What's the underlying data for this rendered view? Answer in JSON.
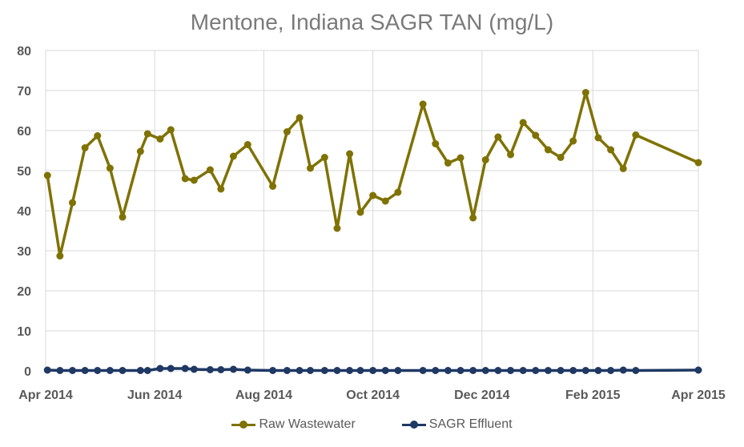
{
  "chart_data": {
    "type": "line",
    "title": "Mentone, Indiana SAGR TAN (mg/L)",
    "ylim": [
      0,
      80
    ],
    "yticks": [
      0,
      10,
      20,
      30,
      40,
      50,
      60,
      70,
      80
    ],
    "xlim": [
      "2014-04-01",
      "2015-04-01"
    ],
    "xticks": [
      {
        "date": "2014-04-01",
        "label": "Apr 2014"
      },
      {
        "date": "2014-06-01",
        "label": "Jun 2014"
      },
      {
        "date": "2014-08-01",
        "label": "Aug 2014"
      },
      {
        "date": "2014-10-01",
        "label": "Oct 2014"
      },
      {
        "date": "2014-12-01",
        "label": "Dec 2014"
      },
      {
        "date": "2015-02-01",
        "label": "Feb 2015"
      },
      {
        "date": "2015-04-01",
        "label": "Apr 2015"
      }
    ],
    "grid": true,
    "legend_position": "bottom",
    "series": [
      {
        "name": "Raw Wastewater",
        "color": "#7f7203",
        "points": [
          [
            "2014-04-02",
            48.8
          ],
          [
            "2014-04-09",
            28.7
          ],
          [
            "2014-04-16",
            42.0
          ],
          [
            "2014-04-23",
            55.7
          ],
          [
            "2014-04-30",
            58.7
          ],
          [
            "2014-05-07",
            50.6
          ],
          [
            "2014-05-14",
            38.4
          ],
          [
            "2014-05-24",
            54.8
          ],
          [
            "2014-05-28",
            59.2
          ],
          [
            "2014-06-04",
            57.9
          ],
          [
            "2014-06-10",
            60.2
          ],
          [
            "2014-06-18",
            48.0
          ],
          [
            "2014-06-23",
            47.6
          ],
          [
            "2014-07-02",
            50.2
          ],
          [
            "2014-07-08",
            45.4
          ],
          [
            "2014-07-15",
            53.6
          ],
          [
            "2014-07-23",
            56.5
          ],
          [
            "2014-08-06",
            46.1
          ],
          [
            "2014-08-14",
            59.7
          ],
          [
            "2014-08-21",
            63.2
          ],
          [
            "2014-08-27",
            50.6
          ],
          [
            "2014-09-04",
            53.3
          ],
          [
            "2014-09-11",
            35.6
          ],
          [
            "2014-09-18",
            54.2
          ],
          [
            "2014-09-24",
            39.6
          ],
          [
            "2014-10-01",
            43.8
          ],
          [
            "2014-10-08",
            42.4
          ],
          [
            "2014-10-15",
            44.6
          ],
          [
            "2014-10-29",
            66.6
          ],
          [
            "2014-11-05",
            56.7
          ],
          [
            "2014-11-12",
            51.9
          ],
          [
            "2014-11-19",
            53.2
          ],
          [
            "2014-11-26",
            38.2
          ],
          [
            "2014-12-03",
            52.7
          ],
          [
            "2014-12-10",
            58.4
          ],
          [
            "2014-12-17",
            54.0
          ],
          [
            "2014-12-24",
            62.0
          ],
          [
            "2014-12-31",
            58.8
          ],
          [
            "2015-01-07",
            55.2
          ],
          [
            "2015-01-14",
            53.3
          ],
          [
            "2015-01-21",
            57.4
          ],
          [
            "2015-01-28",
            69.5
          ],
          [
            "2015-02-04",
            58.2
          ],
          [
            "2015-02-11",
            55.2
          ],
          [
            "2015-02-18",
            50.5
          ],
          [
            "2015-02-25",
            58.9
          ],
          [
            "2015-04-01",
            52.0
          ]
        ]
      },
      {
        "name": "SAGR Effluent",
        "color": "#1f3864",
        "points": [
          [
            "2014-04-02",
            0.2
          ],
          [
            "2014-04-09",
            0.1
          ],
          [
            "2014-04-16",
            0.1
          ],
          [
            "2014-04-23",
            0.1
          ],
          [
            "2014-04-30",
            0.1
          ],
          [
            "2014-05-07",
            0.1
          ],
          [
            "2014-05-14",
            0.1
          ],
          [
            "2014-05-24",
            0.1
          ],
          [
            "2014-05-28",
            0.1
          ],
          [
            "2014-06-04",
            0.6
          ],
          [
            "2014-06-10",
            0.6
          ],
          [
            "2014-06-18",
            0.6
          ],
          [
            "2014-06-23",
            0.4
          ],
          [
            "2014-07-02",
            0.3
          ],
          [
            "2014-07-08",
            0.3
          ],
          [
            "2014-07-15",
            0.4
          ],
          [
            "2014-07-23",
            0.2
          ],
          [
            "2014-08-06",
            0.1
          ],
          [
            "2014-08-14",
            0.1
          ],
          [
            "2014-08-21",
            0.1
          ],
          [
            "2014-08-27",
            0.1
          ],
          [
            "2014-09-04",
            0.1
          ],
          [
            "2014-09-11",
            0.1
          ],
          [
            "2014-09-18",
            0.1
          ],
          [
            "2014-09-24",
            0.1
          ],
          [
            "2014-10-01",
            0.1
          ],
          [
            "2014-10-08",
            0.1
          ],
          [
            "2014-10-15",
            0.1
          ],
          [
            "2014-10-29",
            0.1
          ],
          [
            "2014-11-05",
            0.1
          ],
          [
            "2014-11-12",
            0.1
          ],
          [
            "2014-11-19",
            0.1
          ],
          [
            "2014-11-26",
            0.1
          ],
          [
            "2014-12-03",
            0.1
          ],
          [
            "2014-12-10",
            0.1
          ],
          [
            "2014-12-17",
            0.1
          ],
          [
            "2014-12-24",
            0.1
          ],
          [
            "2014-12-31",
            0.1
          ],
          [
            "2015-01-07",
            0.1
          ],
          [
            "2015-01-14",
            0.1
          ],
          [
            "2015-01-21",
            0.1
          ],
          [
            "2015-01-28",
            0.1
          ],
          [
            "2015-02-04",
            0.1
          ],
          [
            "2015-02-11",
            0.1
          ],
          [
            "2015-02-18",
            0.2
          ],
          [
            "2015-02-25",
            0.1
          ],
          [
            "2015-04-01",
            0.2
          ]
        ]
      }
    ]
  }
}
